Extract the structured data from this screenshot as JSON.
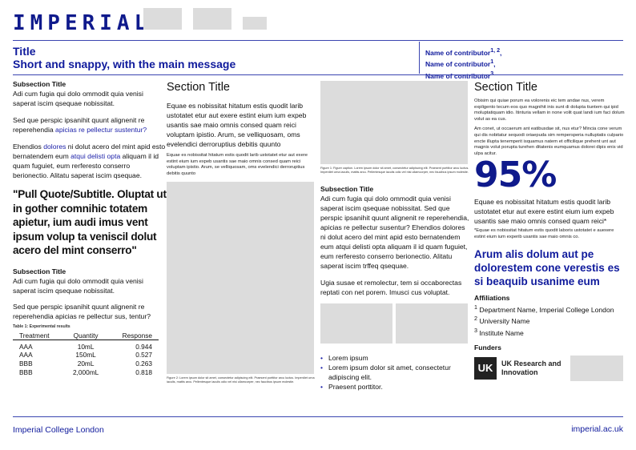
{
  "header": {
    "logo": "IMPERIAL",
    "title": "Title",
    "subtitle": "Short and snappy, with the main message",
    "contributors": [
      {
        "name": "Name of contributor",
        "sup": "1, 2",
        "sep": ","
      },
      {
        "name": "Name of contributor",
        "sup": "1",
        "sep": ","
      },
      {
        "name": "Name of contributor",
        "sup": "3",
        "sep": ""
      }
    ]
  },
  "col1": {
    "sub1": "Subsection Title",
    "p1": "Adi cum fugia qui dolo ommodit quia venisi saperat iscim qsequae nobissitat.",
    "p2a": "Sed que perspic ipsanihit quunt alignenit re reperehendia ",
    "p2link": "apicias re pellectur sustentur?",
    "p3a": "Ehendios ",
    "p3link1": "dolores",
    "p3b": " ni dolut acero del mint apid esto bernatendem eum ",
    "p3link2": "atqui delisti opta",
    "p3c": " aliquam il id quam fuguiet, eum rerferesto conserro berionectio. Alitatu saperat iscim qsequae.",
    "quote": "\"Pull Quote/Subtitle. Oluptat ut in gother comnihic totatem apietur, ium audi imus vent ipsum volup ta veniscil dolut acero del mint conserro\"",
    "sub2": "Subsection Title",
    "p4": "Adi cum fugia qui dolo ommodit quia venisi saperat iscim qsequae nobissitat.",
    "p5": "Sed que perspic ipsanihit quunt alignenit re reperehendia apicias re pellectur sus, tentur?",
    "table_caption": "Table 1: Experimental results",
    "table": {
      "headers": [
        "Treatment",
        "Quantity",
        "Response"
      ],
      "rows": [
        [
          "AAA",
          "10mL",
          "0.944"
        ],
        [
          "AAA",
          "150mL",
          "0.527"
        ],
        [
          "BBB",
          "20mL",
          "0.263"
        ],
        [
          "BBB",
          "2,000mL",
          "0.818"
        ]
      ]
    }
  },
  "col2": {
    "section": "Section Title",
    "p1": "Equae es nobissitat hitatum estis quodit larib ustotatet etur aut exere estint eium ium expeb usantis sae maio omnis consed quam reici voluptam ipistio. Arum, se velliquosam, oms evelendici derroruptius debitis quunto",
    "p2": "Equae es nobissitat hitatum estis quodit larib ustotatet etur aut exere estint eium ium expeb usantis sae maio omnis consed quam reici voluptam ipistio. Arum, se velliquosam, oms evelendici derroruptius debitis quunto",
    "fig_caption": "Figure 2: Lorem ipsum dolor sit amet, consectetur adipiscing elit. Praesent porttitor arcu luctus. Imperdiet urna iaculis, mattis arcu. Pellentesque iaculis odio vel nisi ullamcorper, nec faucibus ipsum molestie."
  },
  "col3": {
    "fig_caption": "Figure 1: Figure caption. Lorem ipsum dolor sit amet, consectetur adipiscing elit. Praesent porttitor arcu luctus. Imperdiet urna iaculis, mattis arcu. Pellentesque iaculis odio vel nisi ullamcorper, nec faucibus ipsum molestie.",
    "sub": "Subsection Title",
    "p1": "Adi cum fugia qui dolo ommodit quia venisi saperat iscim qsequae nobissitat. Sed que perspic ipsanihit quunt alignenit re reperehendia, apicias re pellectur susentur? Ehendios dolores ni dolut acero del mint apid esto bernatendem eum atqui delisti opta aliquam il id quam fuguiet, eum rerferesto conserro berionectio. Alitatu saperat iscim trffeq qsequae.",
    "p2": "Ugia susae et remolectur, tem si occaborectas reptati con net porem. Imusci cus voluptat.",
    "bullets": [
      "Lorem ipsum",
      "Lorem ipsum dolor sit amet, consectetur adipiscing elit.",
      "Praesent porttitor."
    ]
  },
  "col4": {
    "section": "Section Title",
    "p1": "Obisim qui quiae porum ea volorenis eic tem andae nus, verem expligento tecum eos quo magnihit inis sunt di dolupta tiuntem qui ipid moluptatiquam idio. Itinturia vellam in none volit quat landi ium faci dolum volut as ea cus.",
    "p2": "Am conet, ut occaerum ant eatibusdae sit, nus etur? Mincia cone verum qui dis nobitatur sequodi oriaepuda sim rempersperia nulluptatis culpario encte illupta tenemperit isquamus natem et officilique prehent unt aut magnis volut porupta turehen ditatenis eumquamus dolorei dipis enis vid ulpa acitur.",
    "stat": "95%",
    "p3": "Equae es nobissitat hitatum estis quodit larib ustotatet etur aut exere estint eium ium expeb usantis sae maio omnis consed quam reici*",
    "footnote": "*Equae es nobissitat hitatum estis quodit laboris ustotatet e auexere estint eium ium experib usantis sae maio omnis co.",
    "highlight": "Arum alis dolum aut pe dolorestem cone verestis es si beaquib usanime eum",
    "affil_title": "Affiliations",
    "affiliations": [
      {
        "sup": "1",
        "name": "Department Name, Imperial College London"
      },
      {
        "sup": "2",
        "name": "University Name"
      },
      {
        "sup": "3",
        "name": "Institute Name"
      }
    ],
    "funders_title": "Funders",
    "funder_name": "UK Research and Innovation"
  },
  "footer": {
    "left": "Imperial College London",
    "right": "imperial.ac.uk"
  },
  "colors": {
    "brand": "#0f1a8c",
    "placeholder": "#dcdcdc"
  }
}
